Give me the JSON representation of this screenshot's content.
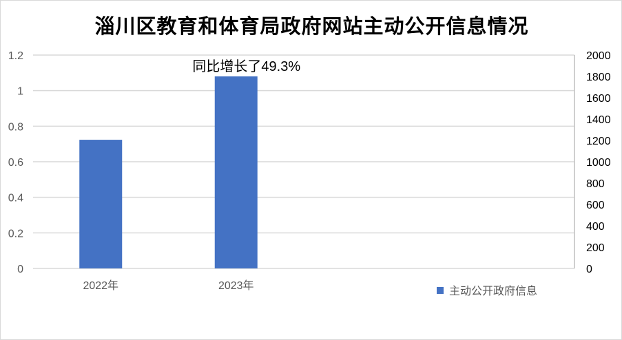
{
  "chart_data": {
    "type": "bar",
    "title": "淄川区教育和体育局政府网站主动公开信息情况",
    "categories": [
      "2022年",
      "2023年"
    ],
    "series": [
      {
        "name": "主动公开政府信息",
        "values": [
          1206,
          1800
        ],
        "axis": "secondary",
        "color": "#4472C4"
      }
    ],
    "primary_axis": {
      "ylim": [
        0,
        1.2
      ],
      "ticks": [
        "0",
        "0.2",
        "0.4",
        "0.6",
        "0.8",
        "1",
        "1.2"
      ]
    },
    "secondary_axis": {
      "ylim": [
        0,
        2000
      ],
      "ticks": [
        "0",
        "200",
        "400",
        "600",
        "800",
        "1000",
        "1200",
        "1400",
        "1600",
        "1800",
        "2000"
      ]
    },
    "annotations": [
      {
        "category": "2023年",
        "text": "同比增长了49.3%"
      }
    ],
    "grid": true,
    "legend": "bottom-right",
    "xlabel": "",
    "ylabel": ""
  }
}
